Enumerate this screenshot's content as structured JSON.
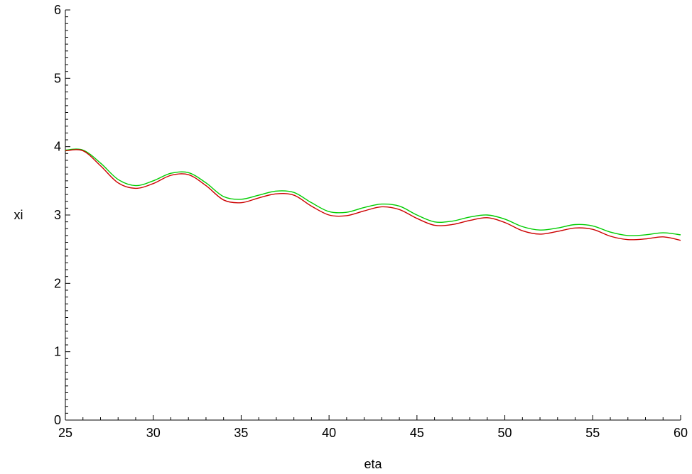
{
  "chart_data": {
    "type": "line",
    "title": "",
    "xlabel": "eta",
    "ylabel": "xi",
    "xlim": [
      25,
      60
    ],
    "ylim": [
      0,
      6
    ],
    "xticks": [
      25,
      30,
      35,
      40,
      45,
      50,
      55,
      60
    ],
    "yticks": [
      0,
      1,
      2,
      3,
      4,
      5,
      6
    ],
    "grid": false,
    "series": [
      {
        "color": "#00cc00",
        "x": [
          25,
          26,
          27,
          28,
          29,
          30,
          31,
          32,
          33,
          34,
          35,
          36,
          37,
          38,
          39,
          40,
          41,
          42,
          43,
          44,
          45,
          46,
          47,
          48,
          49,
          50,
          51,
          52,
          53,
          54,
          55,
          56,
          57,
          58,
          59,
          60
        ],
        "y": [
          3.95,
          3.95,
          3.76,
          3.52,
          3.43,
          3.5,
          3.61,
          3.62,
          3.47,
          3.27,
          3.23,
          3.29,
          3.35,
          3.33,
          3.18,
          3.05,
          3.04,
          3.11,
          3.16,
          3.13,
          3.0,
          2.9,
          2.91,
          2.97,
          3.0,
          2.94,
          2.83,
          2.78,
          2.81,
          2.86,
          2.84,
          2.75,
          2.7,
          2.71,
          2.74,
          2.71
        ]
      },
      {
        "color": "#cc0000",
        "x": [
          25,
          26,
          27,
          28,
          29,
          30,
          31,
          32,
          33,
          34,
          35,
          36,
          37,
          38,
          39,
          40,
          41,
          42,
          43,
          44,
          45,
          46,
          47,
          48,
          49,
          50,
          51,
          52,
          53,
          54,
          55,
          56,
          57,
          58,
          59,
          60
        ],
        "y": [
          3.94,
          3.94,
          3.72,
          3.47,
          3.39,
          3.46,
          3.58,
          3.59,
          3.43,
          3.22,
          3.18,
          3.25,
          3.31,
          3.29,
          3.13,
          3.0,
          2.99,
          3.06,
          3.12,
          3.08,
          2.95,
          2.85,
          2.86,
          2.92,
          2.96,
          2.89,
          2.77,
          2.72,
          2.76,
          2.81,
          2.79,
          2.69,
          2.64,
          2.65,
          2.68,
          2.63
        ]
      }
    ]
  }
}
